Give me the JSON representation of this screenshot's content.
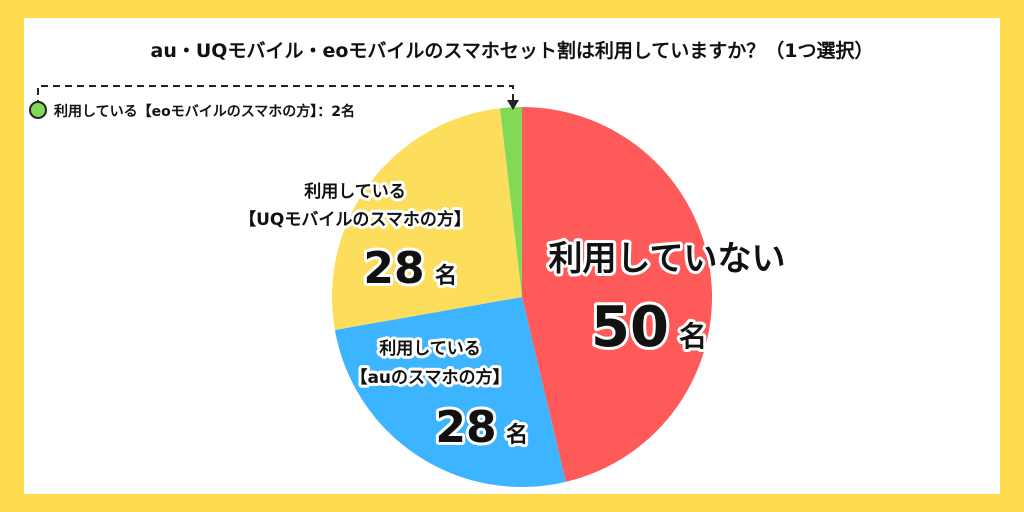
{
  "chart_data": {
    "type": "pie",
    "title": "au・UQモバイル・eoモバイルのスマホセット割は利用していますか？（1つ選択）",
    "unit": "名",
    "slices": [
      {
        "label": "利用していない",
        "value": 50,
        "color": "#ff5a5a"
      },
      {
        "label_line1": "利用している",
        "label_line2": "【auのスマホの方】",
        "value": 28,
        "color": "#3db4ff"
      },
      {
        "label_line1": "利用している",
        "label_line2": "【UQモバイルのスマホの方】",
        "value": 28,
        "color": "#fddd5c"
      },
      {
        "label": "利用している【eoモバイルのスマホの方】：2名",
        "value": 2,
        "color": "#82d957"
      }
    ]
  }
}
